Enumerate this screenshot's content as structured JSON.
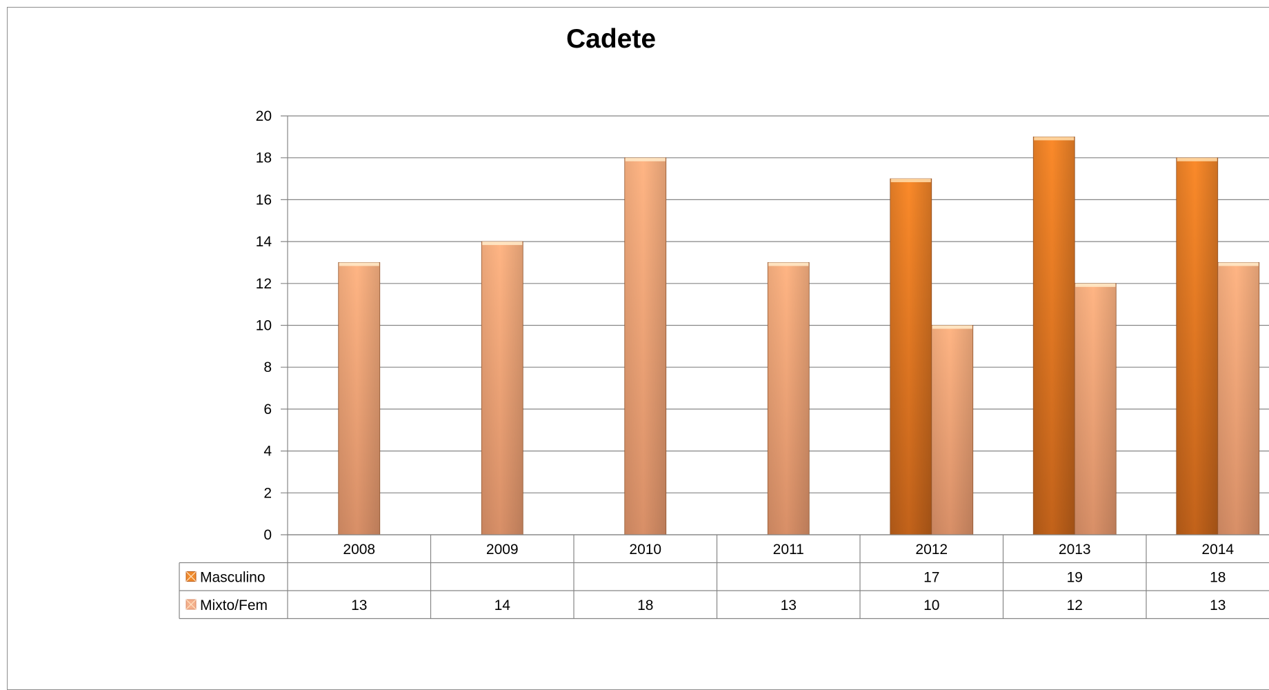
{
  "chart_data": {
    "type": "bar",
    "title": "Cadete",
    "categories": [
      "2008",
      "2009",
      "2010",
      "2011",
      "2012",
      "2013",
      "2014"
    ],
    "series": [
      {
        "name": "Masculino",
        "values": [
          null,
          null,
          null,
          null,
          17,
          19,
          18
        ],
        "color": "#e8761c"
      },
      {
        "name": "Mixto/Fem",
        "values": [
          13,
          14,
          18,
          13,
          10,
          12,
          13
        ],
        "color": "#f6a878"
      }
    ],
    "ylim": [
      0,
      20
    ],
    "yticks": [
      0,
      2,
      4,
      6,
      8,
      10,
      12,
      14,
      16,
      18,
      20
    ],
    "grid": true,
    "data_table": true,
    "legend": "data-table-left"
  }
}
